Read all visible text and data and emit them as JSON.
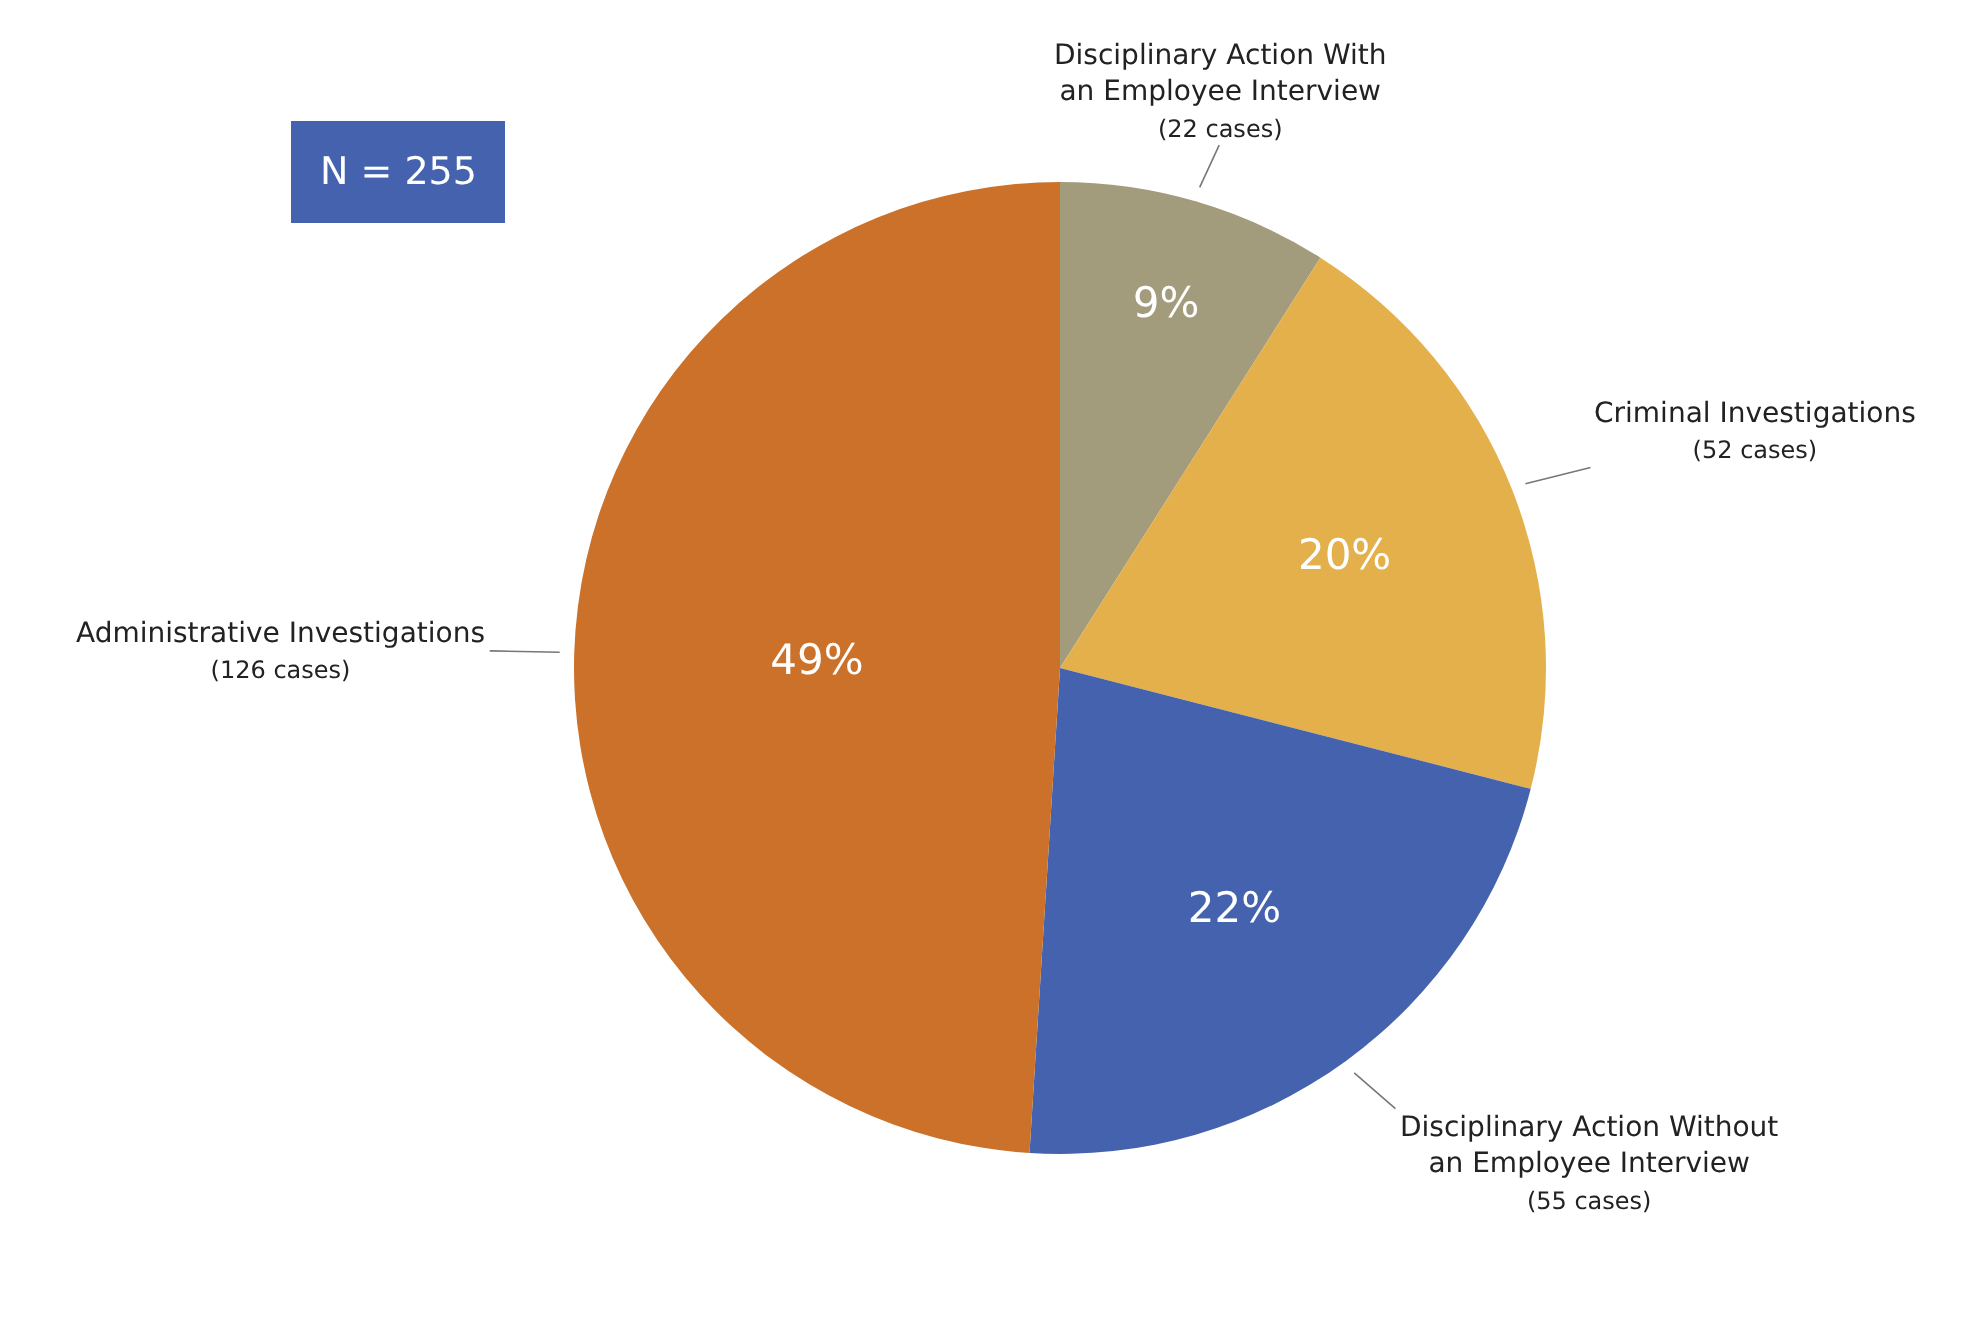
{
  "chart_data": {
    "type": "pie",
    "categories": [
      "Disciplinary Action With\nan Employee Interview\n(22 cases)",
      "Criminal Investigations\n(52 cases)",
      "Disciplinary Action Without\nan Employee Interview\n(55 cases)",
      "Administrative Investigations\n(126 cases)"
    ],
    "values": [
      9,
      20,
      22,
      49
    ],
    "value_labels": [
      "9%",
      "20%",
      "22%",
      "49%"
    ],
    "colors": [
      "#a29b7c",
      "#e4b04b",
      "#4462ae",
      "#cc7129"
    ],
    "annotations": [
      "N = 255"
    ],
    "legend": false
  }
}
